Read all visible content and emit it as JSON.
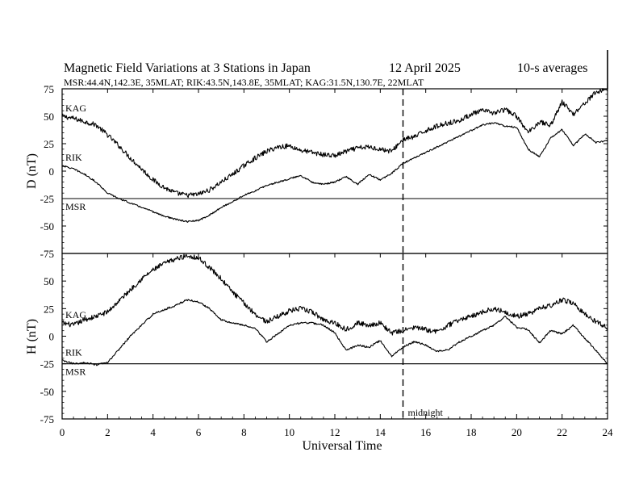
{
  "chart_data": [
    {
      "type": "line",
      "panel": "D",
      "title": "Magnetic Field Variations at 3 Stations in Japan",
      "date": "12 April    2025",
      "averaging": "10-s averages",
      "subtitle": "MSR:44.4N,142.3E, 35MLAT;  RIK:43.5N,143.8E, 35MLAT;  KAG:31.5N,130.7E, 22MLAT",
      "ylabel": "D (nT)",
      "ylim": [
        -75,
        75
      ],
      "yticks": [
        75,
        50,
        25,
        0,
        -25,
        -50,
        -75
      ],
      "ytick_labels": [
        "75",
        "50",
        "25",
        "0",
        "-25",
        "-50",
        "-75"
      ],
      "baseline": -25,
      "series": [
        {
          "name": "KAG",
          "noise": 2.2,
          "x": [
            0,
            0.5,
            1,
            1.5,
            2,
            2.5,
            3,
            3.5,
            4,
            4.5,
            5,
            5.5,
            6,
            6.5,
            7,
            7.5,
            8,
            8.5,
            9,
            9.5,
            10,
            10.5,
            11,
            11.5,
            12,
            12.5,
            13,
            13.5,
            14,
            14.5,
            15,
            15.5,
            16,
            16.5,
            17,
            17.5,
            18,
            18.5,
            19,
            19.5,
            20,
            20.5,
            21,
            21.5,
            22,
            22.5,
            23,
            23.5,
            24
          ],
          "y": [
            50,
            48,
            45,
            42,
            33,
            23,
            12,
            2,
            -8,
            -15,
            -20,
            -22,
            -21,
            -17,
            -10,
            -3,
            5,
            12,
            18,
            22,
            23,
            19,
            17,
            15,
            14,
            18,
            21,
            22,
            20,
            18,
            29,
            31,
            37,
            41,
            44,
            46,
            52,
            55,
            53,
            56,
            50,
            35,
            45,
            42,
            63,
            52,
            62,
            72,
            75
          ]
        },
        {
          "name": "RIK",
          "noise": 0.7,
          "x": [
            0,
            0.5,
            1,
            1.5,
            2,
            2.5,
            3,
            3.5,
            4,
            4.5,
            5,
            5.5,
            6,
            6.5,
            7,
            7.5,
            8,
            8.5,
            9,
            9.5,
            10,
            10.5,
            11,
            11.5,
            12,
            12.5,
            13,
            13.5,
            14,
            14.5,
            15,
            15.5,
            16,
            16.5,
            17,
            17.5,
            18,
            18.5,
            19,
            19.5,
            20,
            20.5,
            21,
            21.5,
            22,
            22.5,
            23,
            23.5,
            24
          ],
          "y": [
            5,
            2,
            -3,
            -10,
            -20,
            -25,
            -29,
            -33,
            -37,
            -41,
            -44,
            -46,
            -45,
            -40,
            -33,
            -28,
            -22,
            -18,
            -13,
            -10,
            -7,
            -4,
            -10,
            -12,
            -10,
            -5,
            -12,
            -3,
            -8,
            -2,
            7,
            12,
            17,
            22,
            27,
            32,
            37,
            42,
            44,
            41,
            40,
            20,
            13,
            30,
            38,
            23,
            34,
            26,
            28
          ]
        },
        {
          "name": "MSR",
          "noise": 0,
          "x": [
            0,
            24
          ],
          "y": [
            -25,
            -25
          ]
        }
      ],
      "annotations": [
        {
          "x": 15,
          "style": "dashed",
          "label": "midnight"
        }
      ]
    },
    {
      "type": "line",
      "panel": "H",
      "ylabel": "H (nT)",
      "xlabel": "Universal Time",
      "xlim": [
        0,
        24
      ],
      "xticks": [
        0,
        2,
        4,
        6,
        8,
        10,
        12,
        14,
        16,
        18,
        20,
        22,
        24
      ],
      "xtick_labels": [
        "0",
        "2",
        "4",
        "6",
        "8",
        "10",
        "12",
        "14",
        "16",
        "18",
        "20",
        "22",
        "24"
      ],
      "ylim": [
        -75,
        75
      ],
      "yticks": [
        50,
        25,
        0,
        -25,
        -50,
        -75
      ],
      "ytick_labels": [
        "50",
        "25",
        "0",
        "-25",
        "-50",
        "-75"
      ],
      "baseline": -25,
      "series": [
        {
          "name": "KAG",
          "noise": 2.2,
          "x": [
            0,
            0.5,
            1,
            1.5,
            2,
            2.5,
            3,
            3.5,
            4,
            4.5,
            5,
            5.5,
            6,
            6.5,
            7,
            7.5,
            8,
            8.5,
            9,
            9.5,
            10,
            10.5,
            11,
            11.5,
            12,
            12.5,
            13,
            13.5,
            14,
            14.5,
            15,
            15.5,
            16,
            16.5,
            17,
            17.5,
            18,
            18.5,
            19,
            19.5,
            20,
            20.5,
            21,
            21.5,
            22,
            22.5,
            23,
            23.5,
            24
          ],
          "y": [
            12,
            10,
            15,
            18,
            22,
            32,
            42,
            52,
            60,
            66,
            70,
            73,
            71,
            62,
            52,
            40,
            30,
            20,
            13,
            18,
            23,
            25,
            22,
            15,
            12,
            6,
            12,
            10,
            12,
            3,
            5,
            8,
            6,
            4,
            10,
            15,
            18,
            22,
            25,
            22,
            18,
            20,
            25,
            28,
            33,
            30,
            20,
            13,
            8
          ]
        },
        {
          "name": "RIK",
          "noise": 0.8,
          "x": [
            0,
            0.5,
            1,
            1.5,
            2,
            2.5,
            3,
            3.5,
            4,
            4.5,
            5,
            5.5,
            6,
            6.5,
            7,
            7.5,
            8,
            8.5,
            9,
            9.5,
            10,
            10.5,
            11,
            11.5,
            12,
            12.5,
            13,
            13.5,
            14,
            14.5,
            15,
            15.5,
            16,
            16.5,
            17,
            17.5,
            18,
            18.5,
            19,
            19.5,
            20,
            20.5,
            21,
            21.5,
            22,
            22.5,
            23,
            23.5,
            24
          ],
          "y": [
            -22,
            -25,
            -24,
            -26,
            -24,
            -12,
            0,
            10,
            20,
            24,
            28,
            33,
            31,
            25,
            15,
            12,
            10,
            7,
            -5,
            2,
            10,
            12,
            12,
            10,
            3,
            -13,
            -8,
            -10,
            -4,
            -18,
            -10,
            -5,
            -8,
            -14,
            -12,
            -5,
            0,
            5,
            10,
            18,
            8,
            6,
            -6,
            5,
            2,
            10,
            -2,
            -13,
            -25
          ]
        },
        {
          "name": "MSR",
          "noise": 0,
          "x": [
            0,
            24
          ],
          "y": [
            -25,
            -25
          ]
        }
      ],
      "annotations": [
        {
          "x": 15,
          "style": "dashed",
          "label": "midnight"
        }
      ]
    }
  ]
}
